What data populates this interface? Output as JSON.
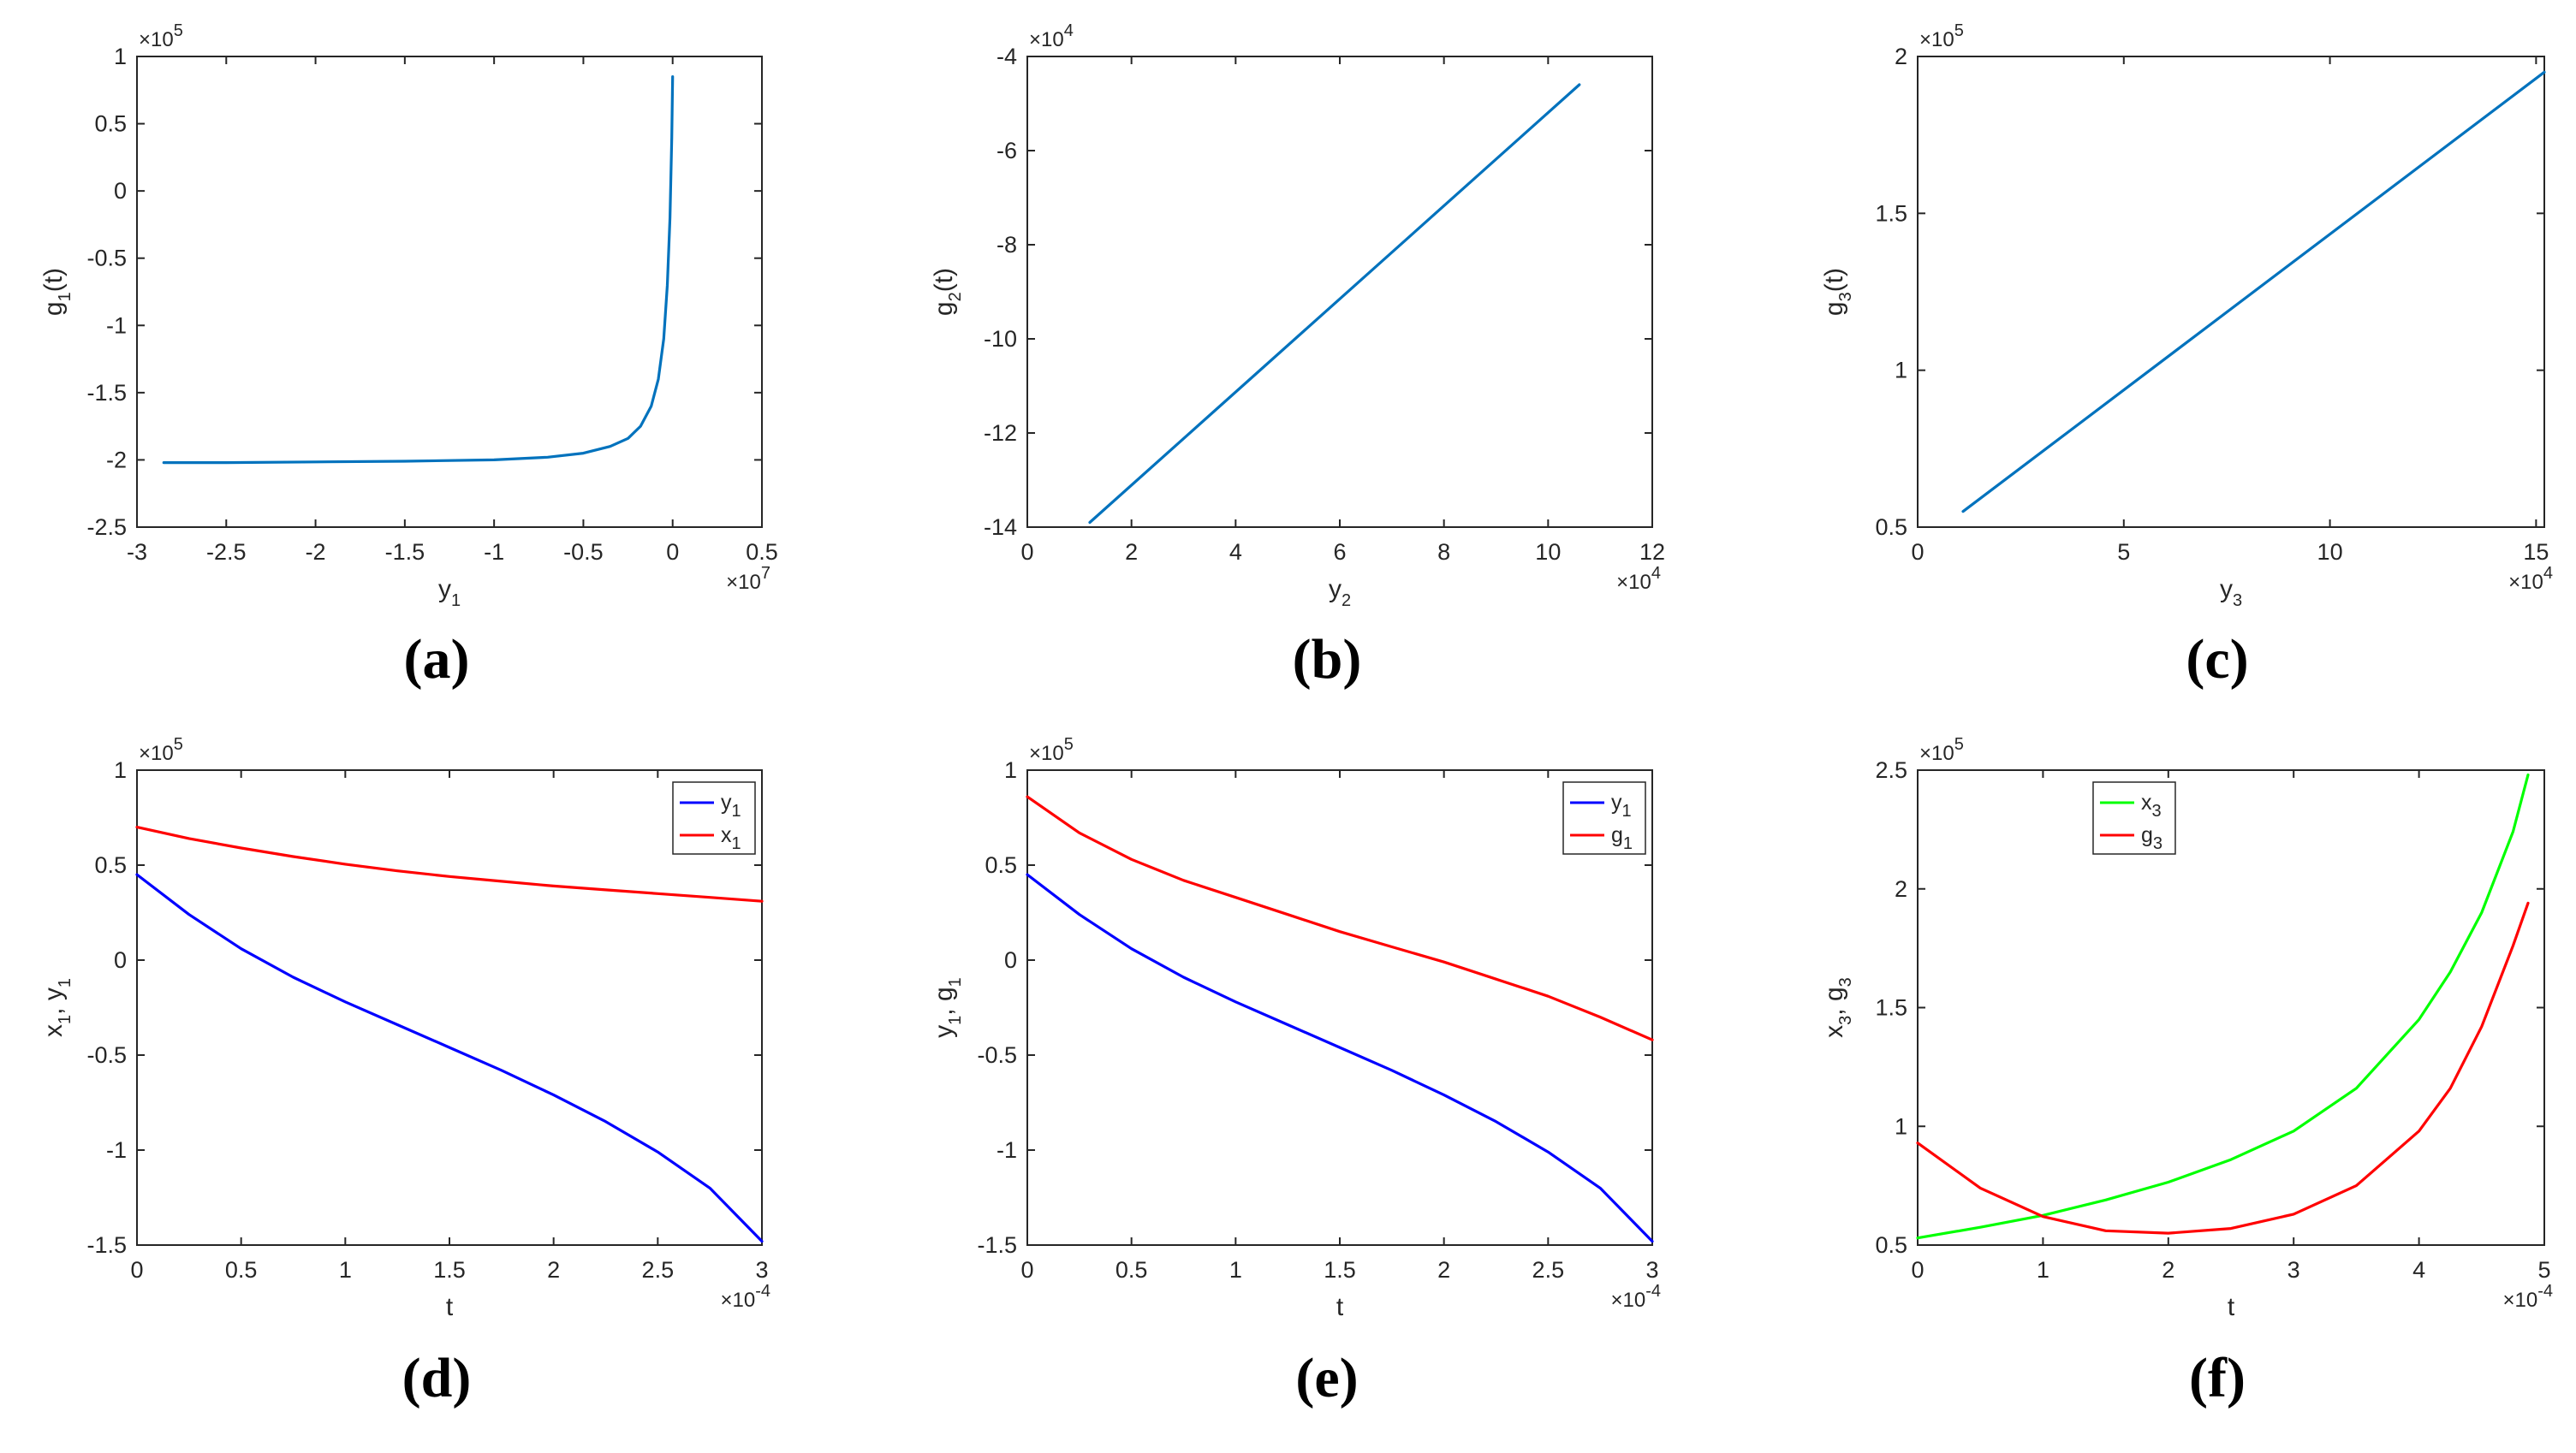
{
  "colors": {
    "blue_default": "#0072BD",
    "blue": "#0000FF",
    "red": "#FF0000",
    "green": "#00FF00",
    "axis": "#262626"
  },
  "chart_data": [
    {
      "id": "a",
      "type": "line",
      "panel_label": "(a)",
      "ylabel": {
        "base": "g",
        "sub": "1",
        "tail": "(t)"
      },
      "xlabel": {
        "base": "y",
        "sub": "1",
        "tail": ""
      },
      "xlim": [
        -3,
        0.5
      ],
      "ylim": [
        -2.5,
        1
      ],
      "xticks": [
        -3,
        -2.5,
        -2,
        -1.5,
        -1,
        -0.5,
        0,
        0.5
      ],
      "xtick_labels": [
        "-3",
        "-2.5",
        "-2",
        "-1.5",
        "-1",
        "-0.5",
        "0",
        "0.5"
      ],
      "yticks": [
        -2.5,
        -2,
        -1.5,
        -1,
        -0.5,
        0,
        0.5,
        1
      ],
      "ytick_labels": [
        "-2.5",
        "-2",
        "-1.5",
        "-1",
        "-0.5",
        "0",
        "0.5",
        "1"
      ],
      "x_multiplier": {
        "base": "×10",
        "exp": "7"
      },
      "y_multiplier": {
        "base": "×10",
        "exp": "5"
      },
      "legend": null,
      "series": [
        {
          "name": "g1",
          "color": "#0072BD",
          "x": [
            -2.85,
            -2.5,
            -2.0,
            -1.5,
            -1.0,
            -0.7,
            -0.5,
            -0.35,
            -0.25,
            -0.18,
            -0.12,
            -0.08,
            -0.05,
            -0.03,
            -0.015,
            -0.005,
            0
          ],
          "y": [
            -2.02,
            -2.02,
            -2.015,
            -2.01,
            -2.0,
            -1.98,
            -1.95,
            -1.9,
            -1.84,
            -1.75,
            -1.6,
            -1.4,
            -1.1,
            -0.7,
            -0.2,
            0.4,
            0.85
          ]
        }
      ]
    },
    {
      "id": "b",
      "type": "line",
      "panel_label": "(b)",
      "ylabel": {
        "base": "g",
        "sub": "2",
        "tail": "(t)"
      },
      "xlabel": {
        "base": "y",
        "sub": "2",
        "tail": ""
      },
      "xlim": [
        0,
        12
      ],
      "ylim": [
        -14,
        -4
      ],
      "xticks": [
        0,
        2,
        4,
        6,
        8,
        10,
        12
      ],
      "xtick_labels": [
        "0",
        "2",
        "4",
        "6",
        "8",
        "10",
        "12"
      ],
      "yticks": [
        -14,
        -12,
        -10,
        -8,
        -6,
        -4
      ],
      "ytick_labels": [
        "-14",
        "-12",
        "-10",
        "-8",
        "-6",
        "-4"
      ],
      "x_multiplier": {
        "base": "×10",
        "exp": "4"
      },
      "y_multiplier": {
        "base": "×10",
        "exp": "4"
      },
      "legend": null,
      "series": [
        {
          "name": "g2",
          "color": "#0072BD",
          "x": [
            1.2,
            10.6
          ],
          "y": [
            -13.9,
            -4.6
          ]
        }
      ]
    },
    {
      "id": "c",
      "type": "line",
      "panel_label": "(c)",
      "ylabel": {
        "base": "g",
        "sub": "3",
        "tail": "(t)"
      },
      "xlabel": {
        "base": "y",
        "sub": "3",
        "tail": ""
      },
      "xlim": [
        0,
        15.2
      ],
      "ylim": [
        0.5,
        2
      ],
      "xticks": [
        0,
        5,
        10,
        15
      ],
      "xtick_labels": [
        "0",
        "5",
        "10",
        "15"
      ],
      "yticks": [
        0.5,
        1,
        1.5,
        2
      ],
      "ytick_labels": [
        "0.5",
        "1",
        "1.5",
        "2"
      ],
      "x_multiplier": {
        "base": "×10",
        "exp": "4"
      },
      "y_multiplier": {
        "base": "×10",
        "exp": "5"
      },
      "legend": null,
      "series": [
        {
          "name": "g3",
          "color": "#0072BD",
          "x": [
            1.1,
            15.2
          ],
          "y": [
            0.55,
            1.95
          ]
        }
      ]
    },
    {
      "id": "d",
      "type": "line",
      "panel_label": "(d)",
      "ylabel": {
        "base": "x",
        "sub": "1",
        "tail": ", y",
        "sub2": "1"
      },
      "xlabel": {
        "base": "t",
        "sub": "",
        "tail": ""
      },
      "xlim": [
        0,
        3
      ],
      "ylim": [
        -1.5,
        1
      ],
      "xticks": [
        0,
        0.5,
        1,
        1.5,
        2,
        2.5,
        3
      ],
      "xtick_labels": [
        "0",
        "0.5",
        "1",
        "1.5",
        "2",
        "2.5",
        "3"
      ],
      "yticks": [
        -1.5,
        -1,
        -0.5,
        0,
        0.5,
        1
      ],
      "ytick_labels": [
        "-1.5",
        "-1",
        "-0.5",
        "0",
        "0.5",
        "1"
      ],
      "x_multiplier": {
        "base": "×10",
        "exp": "-4"
      },
      "y_multiplier": {
        "base": "×10",
        "exp": "5"
      },
      "legend": {
        "position": "top-right",
        "entries": [
          {
            "base": "y",
            "sub": "1",
            "color": "#0000FF"
          },
          {
            "base": "x",
            "sub": "1",
            "color": "#FF0000"
          }
        ]
      },
      "series": [
        {
          "name": "y1",
          "color": "#0000FF",
          "x": [
            0,
            0.25,
            0.5,
            0.75,
            1,
            1.25,
            1.5,
            1.75,
            2,
            2.25,
            2.5,
            2.75,
            3
          ],
          "y": [
            0.45,
            0.24,
            0.06,
            -0.09,
            -0.22,
            -0.34,
            -0.46,
            -0.58,
            -0.71,
            -0.85,
            -1.01,
            -1.2,
            -1.48
          ]
        },
        {
          "name": "x1",
          "color": "#FF0000",
          "x": [
            0,
            0.25,
            0.5,
            0.75,
            1,
            1.25,
            1.5,
            1.75,
            2,
            2.25,
            2.5,
            2.75,
            3
          ],
          "y": [
            0.7,
            0.64,
            0.59,
            0.545,
            0.505,
            0.47,
            0.44,
            0.415,
            0.39,
            0.37,
            0.35,
            0.33,
            0.31
          ]
        }
      ]
    },
    {
      "id": "e",
      "type": "line",
      "panel_label": "(e)",
      "ylabel": {
        "base": "y",
        "sub": "1",
        "tail": ", g",
        "sub2": "1"
      },
      "xlabel": {
        "base": "t",
        "sub": "",
        "tail": ""
      },
      "xlim": [
        0,
        3
      ],
      "ylim": [
        -1.5,
        1
      ],
      "xticks": [
        0,
        0.5,
        1,
        1.5,
        2,
        2.5,
        3
      ],
      "xtick_labels": [
        "0",
        "0.5",
        "1",
        "1.5",
        "2",
        "2.5",
        "3"
      ],
      "yticks": [
        -1.5,
        -1,
        -0.5,
        0,
        0.5,
        1
      ],
      "ytick_labels": [
        "-1.5",
        "-1",
        "-0.5",
        "0",
        "0.5",
        "1"
      ],
      "x_multiplier": {
        "base": "×10",
        "exp": "-4"
      },
      "y_multiplier": {
        "base": "×10",
        "exp": "5"
      },
      "legend": {
        "position": "top-right",
        "entries": [
          {
            "base": "y",
            "sub": "1",
            "color": "#0000FF"
          },
          {
            "base": "g",
            "sub": "1",
            "color": "#FF0000"
          }
        ]
      },
      "series": [
        {
          "name": "y1",
          "color": "#0000FF",
          "x": [
            0,
            0.25,
            0.5,
            0.75,
            1,
            1.25,
            1.5,
            1.75,
            2,
            2.25,
            2.5,
            2.75,
            3
          ],
          "y": [
            0.45,
            0.24,
            0.06,
            -0.09,
            -0.22,
            -0.34,
            -0.46,
            -0.58,
            -0.71,
            -0.85,
            -1.01,
            -1.2,
            -1.48
          ]
        },
        {
          "name": "g1",
          "color": "#FF0000",
          "x": [
            0,
            0.25,
            0.5,
            0.75,
            1,
            1.25,
            1.5,
            1.75,
            2,
            2.25,
            2.5,
            2.75,
            3
          ],
          "y": [
            0.86,
            0.67,
            0.53,
            0.42,
            0.33,
            0.24,
            0.15,
            0.07,
            -0.01,
            -0.1,
            -0.19,
            -0.3,
            -0.42
          ]
        }
      ]
    },
    {
      "id": "f",
      "type": "line",
      "panel_label": "(f)",
      "ylabel": {
        "base": "x",
        "sub": "3",
        "tail": ", g",
        "sub2": "3"
      },
      "xlabel": {
        "base": "t",
        "sub": "",
        "tail": ""
      },
      "xlim": [
        0,
        5
      ],
      "ylim": [
        0.5,
        2.5
      ],
      "xticks": [
        0,
        1,
        2,
        3,
        4,
        5
      ],
      "xtick_labels": [
        "0",
        "1",
        "2",
        "3",
        "4",
        "5"
      ],
      "yticks": [
        0.5,
        1,
        1.5,
        2,
        2.5
      ],
      "ytick_labels": [
        "0.5",
        "1",
        "1.5",
        "2",
        "2.5"
      ],
      "x_multiplier": {
        "base": "×10",
        "exp": "-4"
      },
      "y_multiplier": {
        "base": "×10",
        "exp": "5"
      },
      "legend": {
        "position": "top-center",
        "entries": [
          {
            "base": "x",
            "sub": "3",
            "color": "#00FF00"
          },
          {
            "base": "g",
            "sub": "3",
            "color": "#FF0000"
          }
        ]
      },
      "series": [
        {
          "name": "x3",
          "color": "#00FF00",
          "x": [
            0,
            0.5,
            1,
            1.5,
            2,
            2.5,
            3,
            3.5,
            4,
            4.25,
            4.5,
            4.75,
            4.87
          ],
          "y": [
            0.53,
            0.575,
            0.625,
            0.69,
            0.765,
            0.86,
            0.98,
            1.16,
            1.45,
            1.65,
            1.9,
            2.24,
            2.48
          ]
        },
        {
          "name": "g3",
          "color": "#FF0000",
          "x": [
            0,
            0.5,
            1,
            1.5,
            2,
            2.5,
            3,
            3.5,
            4,
            4.25,
            4.5,
            4.75,
            4.87
          ],
          "y": [
            0.93,
            0.74,
            0.62,
            0.56,
            0.55,
            0.57,
            0.63,
            0.75,
            0.98,
            1.16,
            1.42,
            1.76,
            1.94
          ]
        }
      ]
    }
  ]
}
